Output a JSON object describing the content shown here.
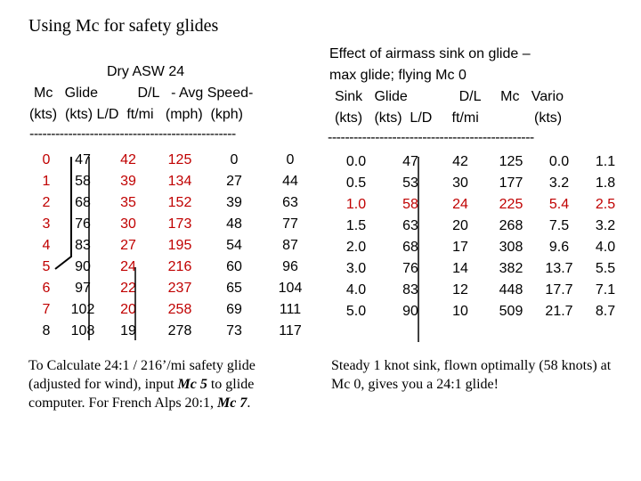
{
  "title": "Using Mc for safety glides",
  "left_table": {
    "caption": "Dry ASW 24",
    "header_row1": "Mc   Glide          D/L   - Avg Speed-",
    "header_row2": "(kts)  (kts) L/D  ft/mi   (mph)  (kph)",
    "divider": "------------------------------------------------",
    "rows": [
      [
        "0",
        "47",
        "42",
        "125",
        "0",
        "0"
      ],
      [
        "1",
        "58",
        "39",
        "134",
        "27",
        "44"
      ],
      [
        "2",
        "68",
        "35",
        "152",
        "39",
        "63"
      ],
      [
        "3",
        "76",
        "30",
        "173",
        "48",
        "77"
      ],
      [
        "4",
        "83",
        "27",
        "195",
        "54",
        "87"
      ],
      [
        "5",
        "90",
        "24",
        "216",
        "60",
        "96"
      ],
      [
        "6",
        "97",
        "22",
        "237",
        "65",
        "104"
      ],
      [
        "7",
        "102",
        "20",
        "258",
        "69",
        "111"
      ],
      [
        "8",
        "108",
        "19",
        "278",
        "73",
        "117"
      ]
    ],
    "note_pre": "To Calculate 24:1 / 216’/mi safety glide (adjusted for wind), input ",
    "note_mc5": "Mc 5",
    "note_mid": " to glide computer. For French Alps 20:1, ",
    "note_mc7": "Mc 7",
    "note_end": "."
  },
  "right_table": {
    "caption_line1": "Effect of airmass sink on glide –",
    "caption_line2": "max glide; flying Mc 0",
    "header_row1": "Sink   Glide             D/L     Mc   Vario",
    "header_row2": "(kts)   (kts)  L/D     ft/mi              (kts)",
    "divider": "------------------------------------------------",
    "rows": [
      [
        "0.0",
        "47",
        "42",
        "125",
        "0.0",
        "1.1"
      ],
      [
        "0.5",
        "53",
        "30",
        "177",
        "3.2",
        "1.8"
      ],
      [
        "1.0",
        "58",
        "24",
        "225",
        "5.4",
        "2.5"
      ],
      [
        "1.5",
        "63",
        "20",
        "268",
        "7.5",
        "3.2"
      ],
      [
        "2.0",
        "68",
        "17",
        "308",
        "9.6",
        "4.0"
      ],
      [
        "3.0",
        "76",
        "14",
        "382",
        "13.7",
        "5.5"
      ],
      [
        "4.0",
        "83",
        "12",
        "448",
        "17.7",
        "7.1"
      ],
      [
        "5.0",
        "90",
        "10",
        "509",
        "21.7",
        "8.7"
      ]
    ],
    "highlight_row_index": 2,
    "note": "Steady 1 knot sink, flown optimally (58 knots) at Mc 0, gives you a 24:1 glide!"
  },
  "colors": {
    "red": "#c00000",
    "text": "#000000",
    "marker_line": "#000000"
  }
}
